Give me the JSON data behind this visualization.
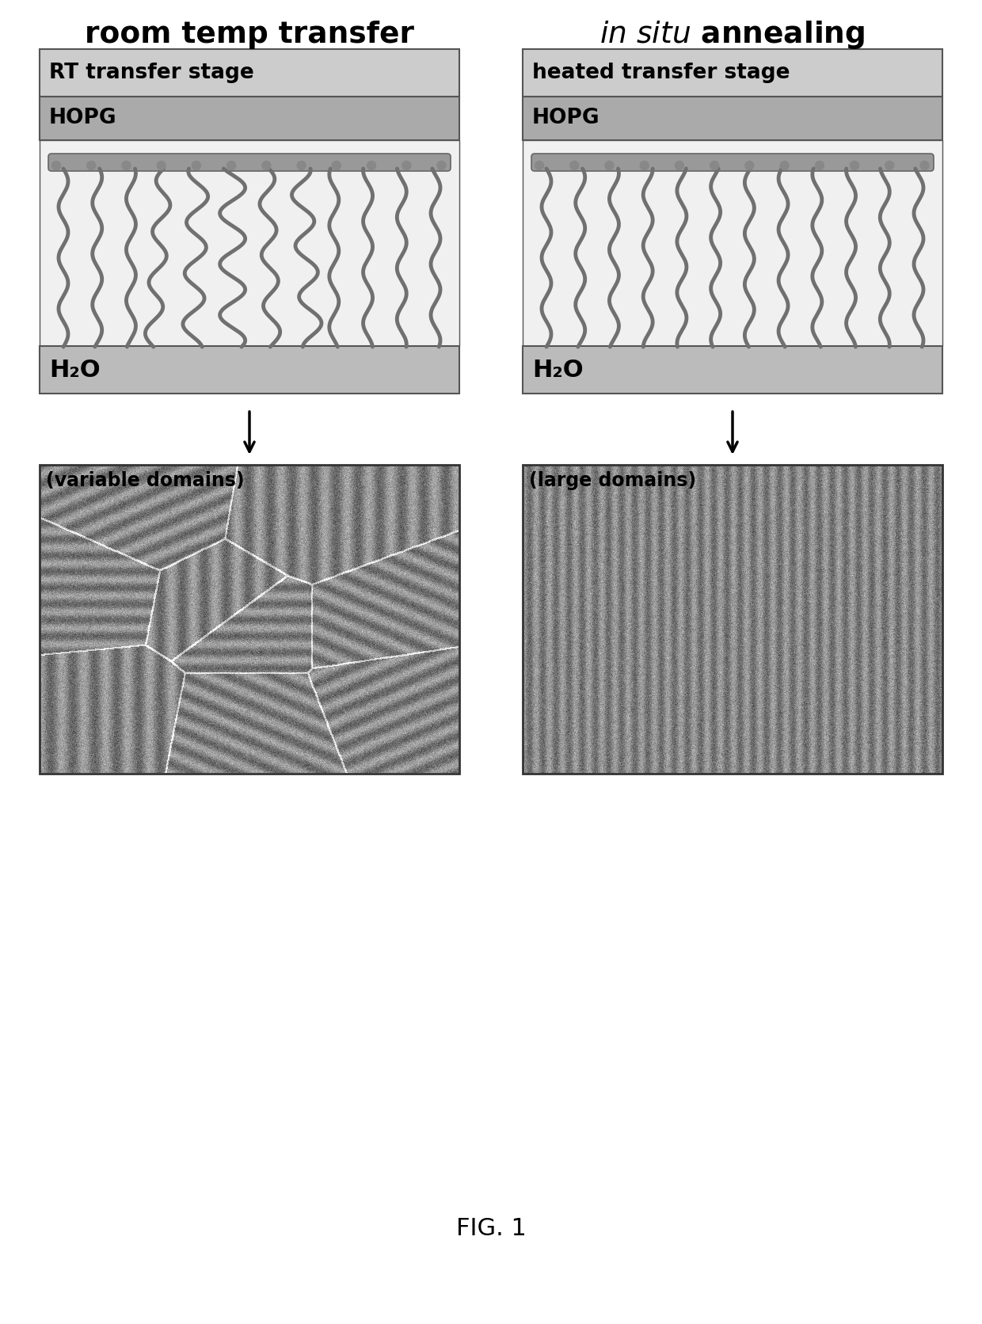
{
  "title_left": "room temp transfer",
  "title_right_italic": "in situ",
  "title_right_normal": " annealing",
  "label_rt_stage": "RT transfer stage",
  "label_heated_stage": "heated transfer stage",
  "label_hopg_left": "HOPG",
  "label_hopg_right": "HOPG",
  "label_h2o_left": "H₂O",
  "label_h2o_right": "H₂O",
  "label_variable": "(variable domains)",
  "label_large": "(large domains)",
  "label_fig": "FIG. 1",
  "bg_color": "#ffffff",
  "stage_color": "#cccccc",
  "hopg_color": "#aaaaaa",
  "water_color": "#bbbbbb",
  "chain_region_color": "#e8e8e8",
  "chain_color": "#707070",
  "bar_color": "#888888",
  "border_color": "#555555"
}
